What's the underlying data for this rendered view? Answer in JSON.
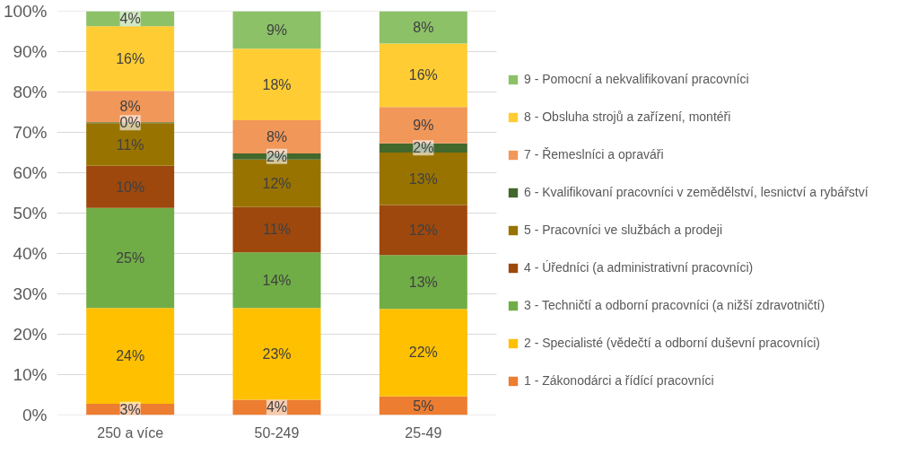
{
  "chart_data": {
    "type": "bar",
    "stacked": true,
    "categories": [
      "250 a více",
      "50-249",
      "25-49"
    ],
    "series": [
      {
        "name": "1 - Zákonodárci a řídící pracovníci",
        "color": "#ed7d31",
        "values": [
          2.8,
          3.8,
          4.6
        ],
        "value_labels": [
          "3%",
          "4%",
          "5%"
        ]
      },
      {
        "name": "2 - Specialisté (vědečtí a odborní duševní pracovníci)",
        "color": "#ffc000",
        "values": [
          23.7,
          22.7,
          21.7
        ],
        "value_labels": [
          "24%",
          "23%",
          "22%"
        ]
      },
      {
        "name": "3 - Techničtí a odborní pracovníci (a nižší zdravotničtí)",
        "color": "#70ad47",
        "values": [
          24.8,
          13.8,
          13.3
        ],
        "value_labels": [
          "25%",
          "14%",
          "13%"
        ]
      },
      {
        "name": "4 - Úředníci (a administrativní pracovníci)",
        "color": "#9e480e",
        "values": [
          10.4,
          11.2,
          12.4
        ],
        "value_labels": [
          "10%",
          "11%",
          "12%"
        ]
      },
      {
        "name": "5 - Pracovníci ve službách a prodeji",
        "color": "#997300",
        "values": [
          10.6,
          11.8,
          13.0
        ],
        "value_labels": [
          "11%",
          "12%",
          "13%"
        ]
      },
      {
        "name": "6 - Kvalifikovaní pracovníci v zemědělství, lesnictví a rybářství",
        "color": "#43682b",
        "values": [
          0.2,
          1.5,
          2.3
        ],
        "value_labels": [
          "0%",
          "2%",
          "2%"
        ]
      },
      {
        "name": "7 - Řemeslníci a opraváři",
        "color": "#f1975a",
        "values": [
          7.8,
          8.2,
          9.0
        ],
        "value_labels": [
          "8%",
          "8%",
          "9%"
        ]
      },
      {
        "name": "8 - Obsluha strojů a zařízení, montéři",
        "color": "#ffcd33",
        "values": [
          16.0,
          17.7,
          15.7
        ],
        "value_labels": [
          "16%",
          "18%",
          "16%"
        ]
      },
      {
        "name": "9 - Pomocní a nekvalifikovaní pracovníci",
        "color": "#8cc168",
        "values": [
          3.7,
          9.3,
          8.0
        ],
        "value_labels": [
          "4%",
          "9%",
          "8%"
        ]
      }
    ],
    "ylim": [
      0,
      100
    ],
    "yticks": [
      {
        "value": 0,
        "label": "0%"
      },
      {
        "value": 10,
        "label": "10%"
      },
      {
        "value": 20,
        "label": "20%"
      },
      {
        "value": 30,
        "label": "30%"
      },
      {
        "value": 40,
        "label": "40%"
      },
      {
        "value": 50,
        "label": "50%"
      },
      {
        "value": 60,
        "label": "60%"
      },
      {
        "value": 70,
        "label": "70%"
      },
      {
        "value": 80,
        "label": "80%"
      },
      {
        "value": 90,
        "label": "90%"
      },
      {
        "value": 100,
        "label": "100%"
      }
    ],
    "grid": "y",
    "legend": "right"
  }
}
